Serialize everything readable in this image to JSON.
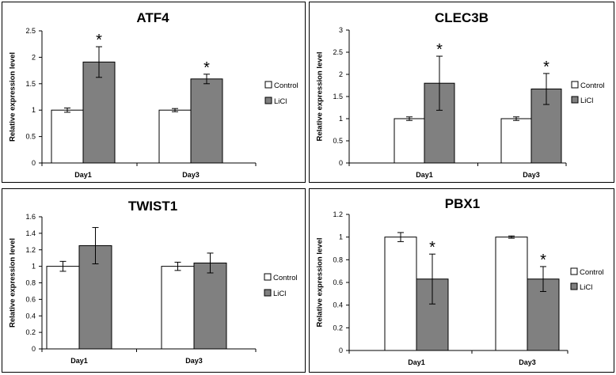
{
  "chart_data": [
    {
      "type": "bar",
      "title": "ATF4",
      "categories": [
        "Day1",
        "Day3"
      ],
      "ylabel": "Relative expression level",
      "ylim": [
        0,
        2.5
      ],
      "yticks": [
        "0",
        "0.5",
        "1",
        "1.5",
        "2",
        "2.5"
      ],
      "tickvals": [
        0,
        0.5,
        1,
        1.5,
        2,
        2.5
      ],
      "legend_position": "right",
      "series": [
        {
          "name": "Control",
          "color": "#ffffff",
          "values": [
            1.0,
            1.0
          ],
          "errors": [
            0.04,
            0.03
          ],
          "significant": [
            false,
            false
          ]
        },
        {
          "name": "LiCl",
          "color": "#808080",
          "values": [
            1.91,
            1.59
          ],
          "errors": [
            0.29,
            0.09
          ],
          "significant": [
            true,
            true
          ]
        }
      ],
      "annotation": "*"
    },
    {
      "type": "bar",
      "title": "CLEC3B",
      "categories": [
        "Day1",
        "Day3"
      ],
      "ylabel": "Relative expression level",
      "ylim": [
        0,
        3
      ],
      "yticks": [
        "0",
        "0.5",
        "1",
        "1.5",
        "2",
        "2.5",
        "3"
      ],
      "tickvals": [
        0,
        0.5,
        1,
        1.5,
        2,
        2.5,
        3
      ],
      "legend_position": "right",
      "series": [
        {
          "name": "Control",
          "color": "#ffffff",
          "values": [
            1.0,
            1.0
          ],
          "errors": [
            0.04,
            0.04
          ],
          "significant": [
            false,
            false
          ]
        },
        {
          "name": "LiCl",
          "color": "#808080",
          "values": [
            1.8,
            1.67
          ],
          "errors": [
            0.61,
            0.35
          ],
          "significant": [
            true,
            true
          ]
        }
      ],
      "annotation": "*"
    },
    {
      "type": "bar",
      "title": "TWIST1",
      "categories": [
        "Day1",
        "Day3"
      ],
      "ylabel": "Relative expression level",
      "ylim": [
        0,
        1.6
      ],
      "yticks": [
        "0",
        "0.2",
        "0.4",
        "0.6",
        "0.8",
        "1",
        "1.2",
        "1.4",
        "1.6"
      ],
      "tickvals": [
        0,
        0.2,
        0.4,
        0.6,
        0.8,
        1.0,
        1.2,
        1.4,
        1.6
      ],
      "legend_position": "right",
      "series": [
        {
          "name": "Control",
          "color": "#ffffff",
          "values": [
            1.0,
            1.0
          ],
          "errors": [
            0.06,
            0.05
          ],
          "significant": [
            false,
            false
          ]
        },
        {
          "name": "LiCl",
          "color": "#808080",
          "values": [
            1.25,
            1.04
          ],
          "errors": [
            0.22,
            0.12
          ],
          "significant": [
            false,
            false
          ]
        }
      ],
      "annotation": "*"
    },
    {
      "type": "bar",
      "title": "PBX1",
      "categories": [
        "Day1",
        "Day3"
      ],
      "ylabel": "Relative expression level",
      "ylim": [
        0,
        1.2
      ],
      "yticks": [
        "0",
        "0.2",
        "0.4",
        "0.6",
        "0.8",
        "1",
        "1.2"
      ],
      "tickvals": [
        0,
        0.2,
        0.4,
        0.6,
        0.8,
        1.0,
        1.2
      ],
      "legend_position": "right",
      "series": [
        {
          "name": "Control",
          "color": "#ffffff",
          "values": [
            1.0,
            1.0
          ],
          "errors": [
            0.04,
            0.01
          ],
          "significant": [
            false,
            false
          ]
        },
        {
          "name": "LiCl",
          "color": "#808080",
          "values": [
            0.63,
            0.63
          ],
          "errors": [
            0.22,
            0.11
          ],
          "significant": [
            true,
            true
          ]
        }
      ],
      "annotation": "*"
    }
  ]
}
